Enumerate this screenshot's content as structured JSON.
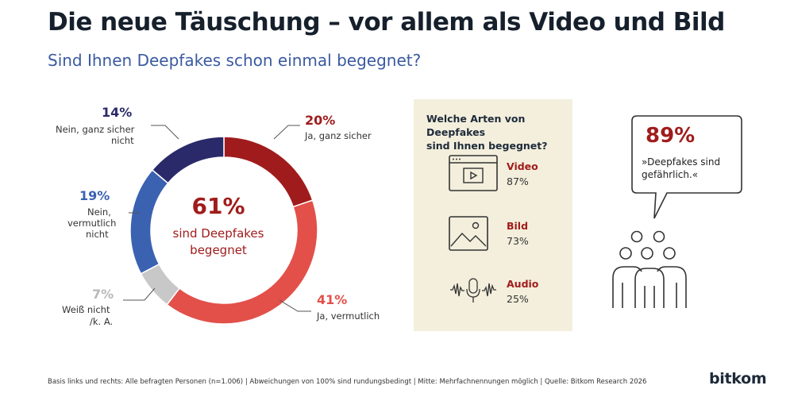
{
  "title": "Die neue Täuschung – vor allem als Video und Bild",
  "subtitle": "Sind Ihnen Deepfakes schon einmal begegnet?",
  "chart_data": {
    "type": "pie",
    "slices": [
      {
        "label": "Ja, ganz sicher",
        "value": 20,
        "display": "20%",
        "color": "#a01c1c"
      },
      {
        "label": "Ja, vermutlich",
        "value": 41,
        "display": "41%",
        "color": "#e3504a"
      },
      {
        "label": "Weiß nicht /k. A.",
        "value": 7,
        "display": "7%",
        "color": "#c8c8c8"
      },
      {
        "label": "Nein, vermutlich nicht",
        "value": 19,
        "display": "19%",
        "color": "#3a62b0"
      },
      {
        "label": "Nein, ganz sicher nicht",
        "value": 14,
        "display": "14%",
        "color": "#2a2a6a"
      }
    ],
    "center_value": "61%",
    "center_label_1": "sind Deepfakes",
    "center_label_2": "begegnet"
  },
  "labels": {
    "ja_sicher_1": "Ja, ganz sicher",
    "ja_vermutlich_1": "Ja, vermutlich",
    "weiss_1": "Weiß nicht",
    "weiss_2": "/k. A.",
    "nein_vermutlich_1": "Nein,",
    "nein_vermutlich_2": "vermutlich",
    "nein_vermutlich_3": "nicht",
    "nein_sicher_1": "Nein, ganz sicher",
    "nein_sicher_2": "nicht"
  },
  "panel": {
    "title_1": "Welche Arten von Deepfakes",
    "title_2": "sind Ihnen begegnet?",
    "items": [
      {
        "type": "Video",
        "value": "87%",
        "icon": "video-icon"
      },
      {
        "type": "Bild",
        "value": "73%",
        "icon": "image-icon"
      },
      {
        "type": "Audio",
        "value": "25%",
        "icon": "audio-icon"
      }
    ]
  },
  "bubble": {
    "pct": "89%",
    "text_1": "»Deepfakes sind",
    "text_2": "gefährlich.«"
  },
  "footer": "Basis links und rechts: Alle befragten Personen (n=1.006) | Abweichungen von 100% sind rundungsbedingt | Mitte: Mehrfachnennungen möglich | Quelle: Bitkom Research 2026",
  "logo": "bitkom",
  "colors": {
    "accent": "#a01c1c",
    "blue": "#3a5aa0",
    "panel_bg": "#f3efdc"
  }
}
